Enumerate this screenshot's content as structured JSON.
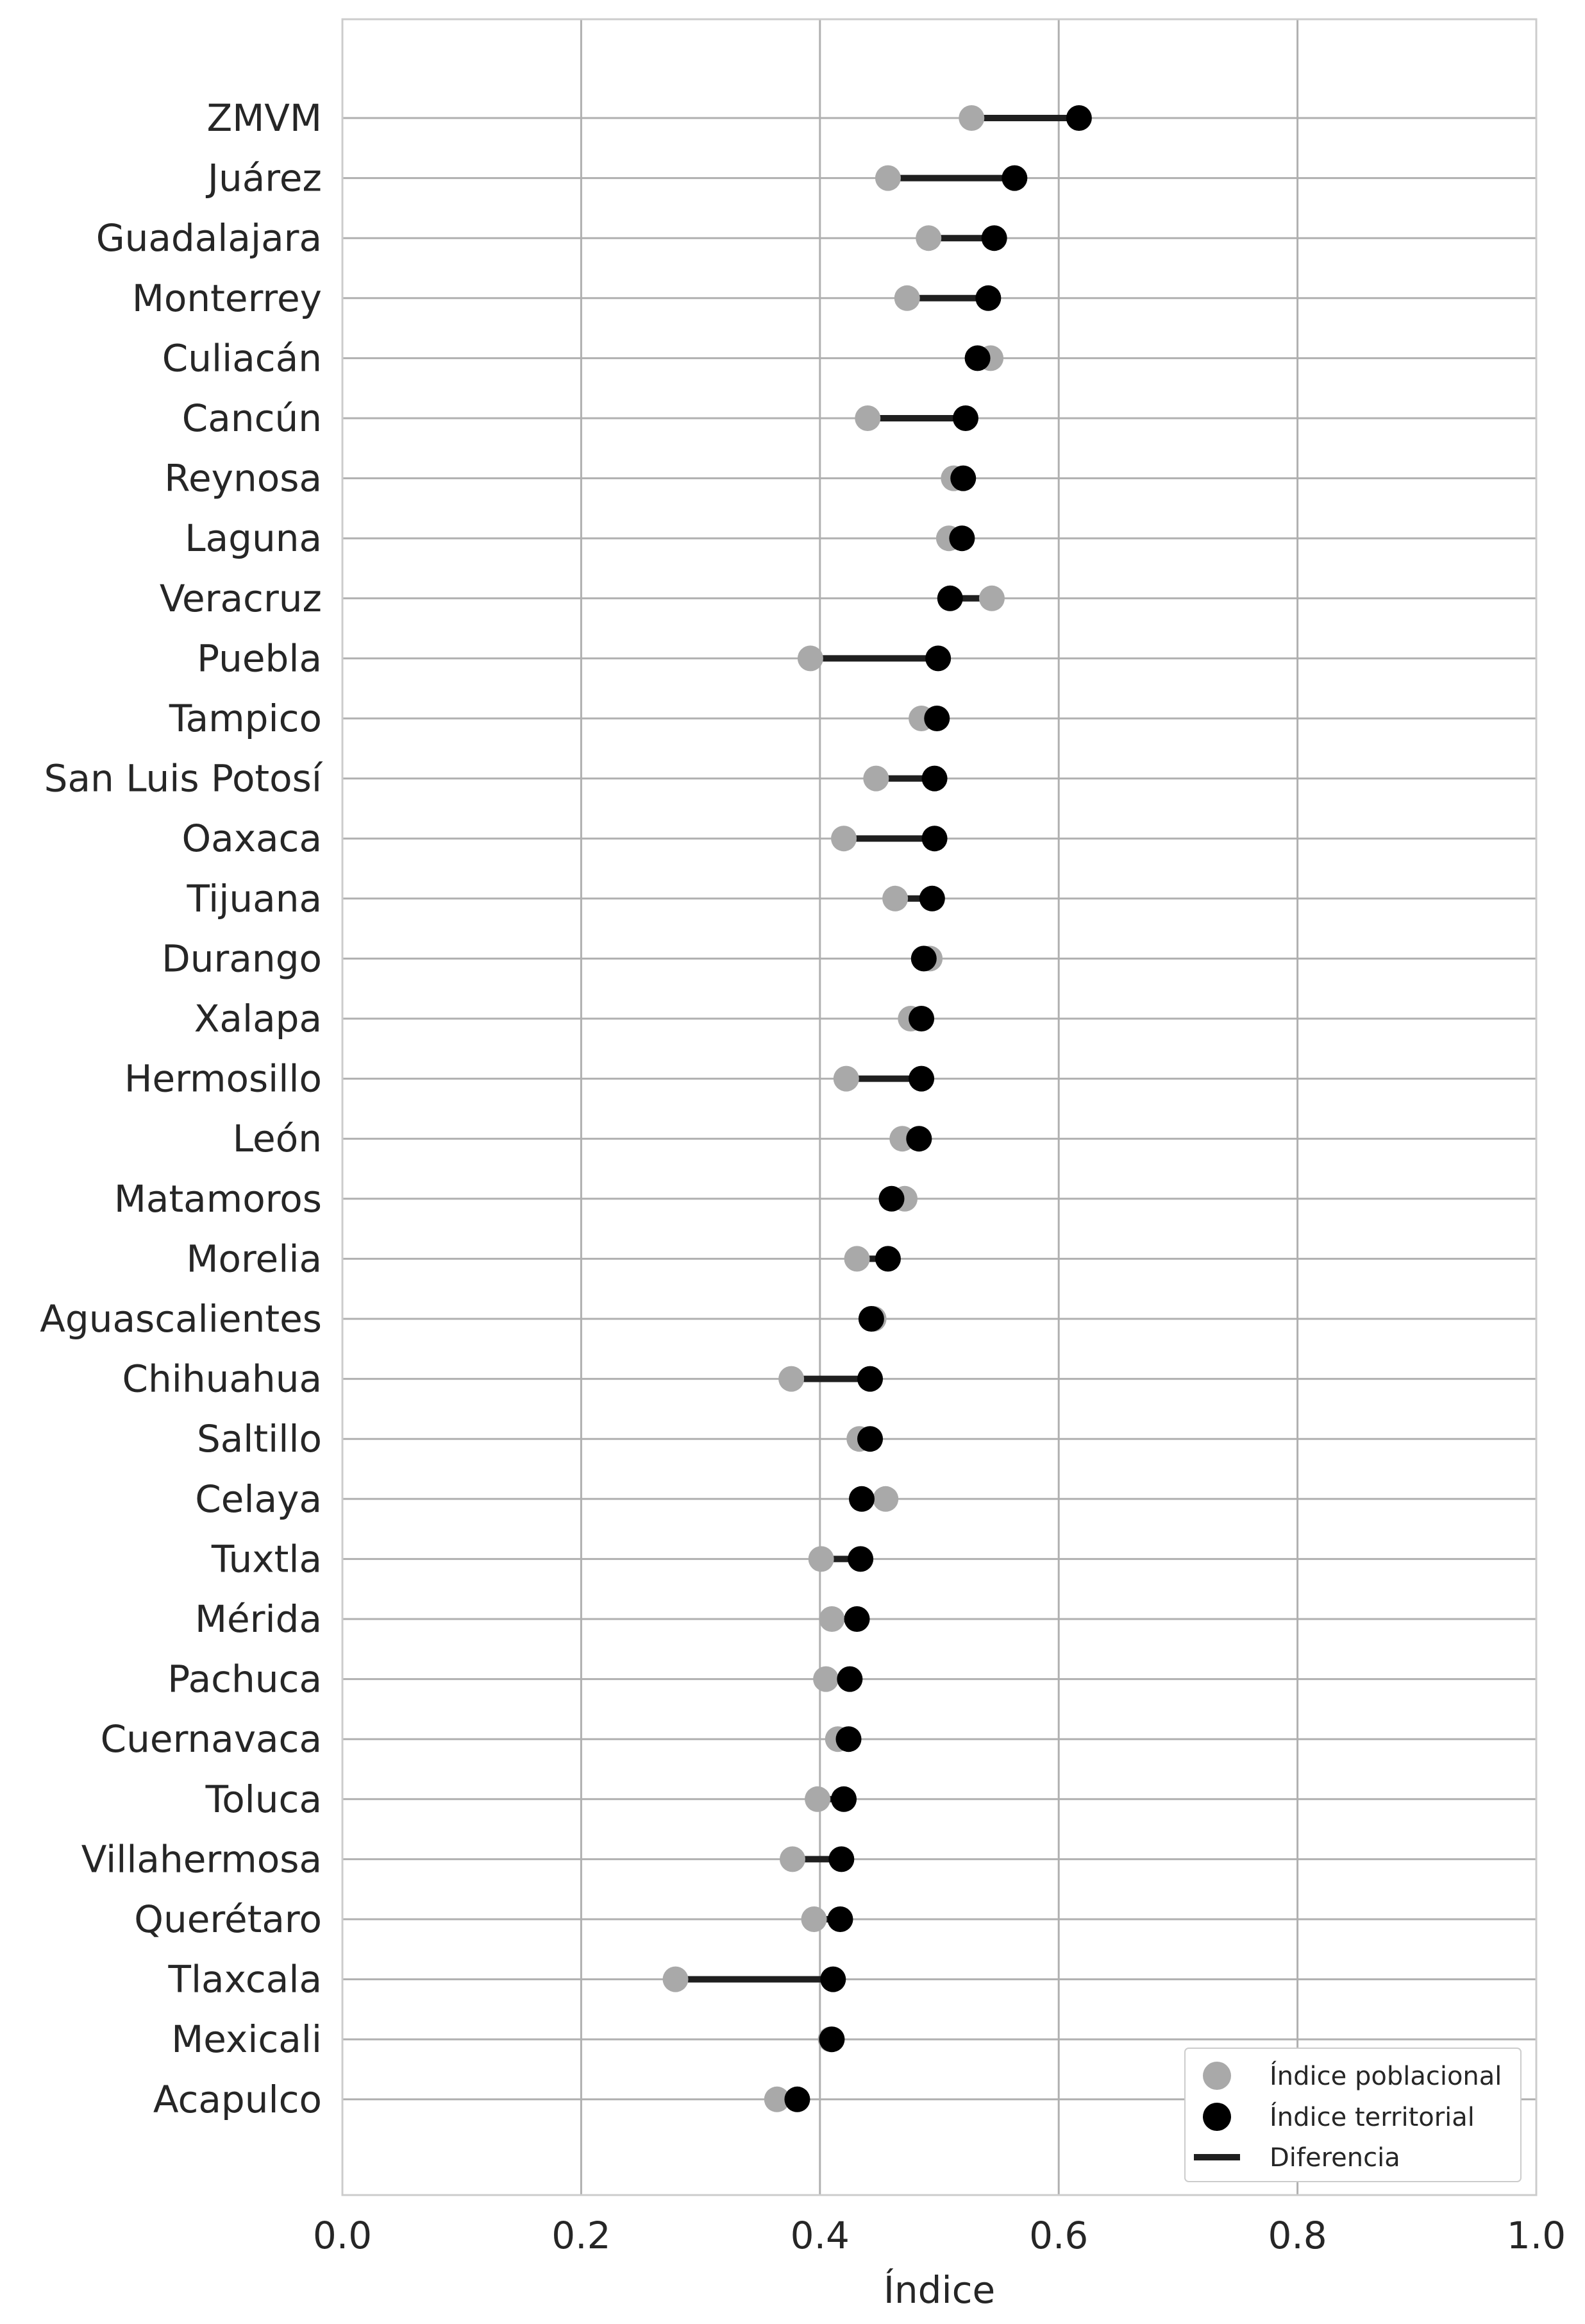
{
  "chart_data": {
    "type": "dumbbell",
    "xlabel": "Índice",
    "ylabel": "",
    "xlim": [
      0.0,
      1.0
    ],
    "xticks": [
      "0.0",
      "0.2",
      "0.4",
      "0.6",
      "0.8",
      "1.0"
    ],
    "grid": true,
    "legend_position": "bottom-right",
    "categories": [
      "ZMVM",
      "Juárez",
      "Guadalajara",
      "Monterrey",
      "Culiacán",
      "Cancún",
      "Reynosa",
      "Laguna",
      "Veracruz",
      "Puebla",
      "Tampico",
      "San Luis Potosí",
      "Oaxaca",
      "Tijuana",
      "Durango",
      "Xalapa",
      "Hermosillo",
      "León",
      "Matamoros",
      "Morelia",
      "Aguascalientes",
      "Chihuahua",
      "Saltillo",
      "Celaya",
      "Tuxtla",
      "Mérida",
      "Pachuca",
      "Cuernavaca",
      "Toluca",
      "Villahermosa",
      "Querétaro",
      "Tlaxcala",
      "Mexicali",
      "Acapulco"
    ],
    "series": [
      {
        "name": "Índice poblacional",
        "color": "#a9a9a9",
        "values": [
          0.527,
          0.457,
          0.491,
          0.473,
          0.543,
          0.44,
          0.512,
          0.508,
          0.544,
          0.392,
          0.485,
          0.447,
          0.42,
          0.463,
          0.492,
          0.476,
          0.422,
          0.469,
          0.471,
          0.431,
          0.445,
          0.376,
          0.433,
          0.455,
          0.401,
          0.41,
          0.405,
          0.415,
          0.398,
          0.377,
          0.395,
          0.279,
          0.409,
          0.364
        ]
      },
      {
        "name": "Índice territorial",
        "color": "#000000",
        "values": [
          0.617,
          0.563,
          0.546,
          0.541,
          0.532,
          0.522,
          0.52,
          0.519,
          0.509,
          0.499,
          0.498,
          0.496,
          0.496,
          0.494,
          0.487,
          0.485,
          0.485,
          0.483,
          0.46,
          0.457,
          0.443,
          0.442,
          0.442,
          0.435,
          0.434,
          0.431,
          0.425,
          0.424,
          0.42,
          0.418,
          0.417,
          0.411,
          0.41,
          0.381
        ]
      }
    ],
    "difference_label": "Diferencia",
    "difference_color": "#1f1f1f"
  }
}
